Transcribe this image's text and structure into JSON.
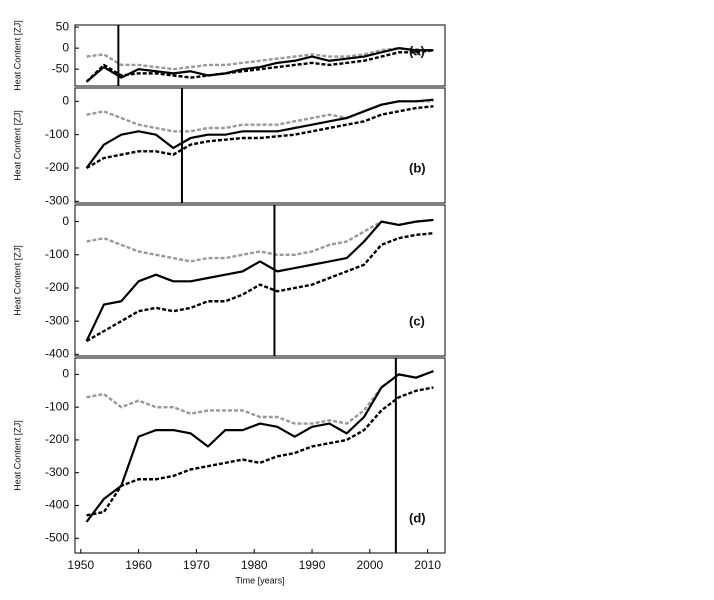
{
  "chart_data": [
    {
      "type": "line",
      "label": "(a)",
      "ylabel": "Heat Content [ZJ]",
      "xlim": [
        1949,
        2013
      ],
      "ylim": [
        -90,
        55
      ],
      "yticks": [
        50,
        0,
        -50
      ],
      "vline": 1956.5,
      "x": [
        1951,
        1954,
        1957,
        1960,
        1963,
        1966,
        1969,
        1972,
        1975,
        1978,
        1981,
        1984,
        1987,
        1990,
        1993,
        1996,
        1999,
        2002,
        2005,
        2008,
        2011
      ],
      "series": [
        {
          "color": "#999999",
          "dash": true,
          "values": [
            -20,
            -15,
            -40,
            -40,
            -45,
            -50,
            -45,
            -40,
            -40,
            -35,
            -30,
            -25,
            -20,
            -15,
            -20,
            -20,
            -15,
            -5,
            0,
            -5,
            -5
          ]
        },
        {
          "color": "#000000",
          "dash": true,
          "values": [
            -80,
            -40,
            -65,
            -60,
            -60,
            -65,
            -70,
            -65,
            -60,
            -55,
            -50,
            -45,
            -40,
            -35,
            -40,
            -35,
            -30,
            -20,
            -10,
            -10,
            -5
          ]
        },
        {
          "color": "#000000",
          "dash": false,
          "values": [
            -80,
            -45,
            -70,
            -50,
            -55,
            -60,
            -55,
            -65,
            -60,
            -50,
            -45,
            -35,
            -30,
            -20,
            -30,
            -25,
            -20,
            -10,
            0,
            -5,
            -5
          ]
        }
      ]
    },
    {
      "type": "line",
      "label": "(b)",
      "ylabel": "Heat Content [ZJ]",
      "xlim": [
        1949,
        2013
      ],
      "ylim": [
        -305,
        40
      ],
      "yticks": [
        0,
        -100,
        -200,
        -300
      ],
      "vline": 1967.5,
      "x": [
        1951,
        1954,
        1957,
        1960,
        1963,
        1966,
        1969,
        1972,
        1975,
        1978,
        1981,
        1984,
        1987,
        1990,
        1993,
        1996,
        1999,
        2002,
        2005,
        2008,
        2011
      ],
      "series": [
        {
          "color": "#999999",
          "dash": true,
          "values": [
            -40,
            -30,
            -50,
            -70,
            -80,
            -90,
            -90,
            -80,
            -80,
            -70,
            -70,
            -70,
            -60,
            -50,
            -40,
            -50,
            -30,
            -10,
            0,
            0,
            0
          ]
        },
        {
          "color": "#000000",
          "dash": true,
          "values": [
            -200,
            -170,
            -160,
            -150,
            -150,
            -160,
            -130,
            -120,
            -115,
            -110,
            -110,
            -105,
            -100,
            -90,
            -80,
            -70,
            -60,
            -40,
            -30,
            -20,
            -15
          ]
        },
        {
          "color": "#000000",
          "dash": false,
          "values": [
            -200,
            -130,
            -100,
            -90,
            -100,
            -140,
            -110,
            -100,
            -100,
            -90,
            -90,
            -90,
            -80,
            -70,
            -60,
            -50,
            -30,
            -10,
            0,
            0,
            5
          ]
        }
      ]
    },
    {
      "type": "line",
      "label": "(c)",
      "ylabel": "Heat Content [ZJ]",
      "xlim": [
        1949,
        2013
      ],
      "ylim": [
        -405,
        50
      ],
      "yticks": [
        0,
        -100,
        -200,
        -300,
        -400
      ],
      "vline": 1983.5,
      "x": [
        1951,
        1954,
        1957,
        1960,
        1963,
        1966,
        1969,
        1972,
        1975,
        1978,
        1981,
        1984,
        1987,
        1990,
        1993,
        1996,
        1999,
        2002,
        2005,
        2008,
        2011
      ],
      "series": [
        {
          "color": "#999999",
          "dash": true,
          "values": [
            -60,
            -50,
            -70,
            -90,
            -100,
            -110,
            -120,
            -110,
            -110,
            -100,
            -90,
            -100,
            -100,
            -90,
            -70,
            -60,
            -30,
            0,
            -10,
            0,
            5
          ]
        },
        {
          "color": "#000000",
          "dash": true,
          "values": [
            -360,
            -330,
            -300,
            -270,
            -260,
            -270,
            -260,
            -240,
            -240,
            -220,
            -190,
            -210,
            -200,
            -190,
            -170,
            -150,
            -130,
            -70,
            -50,
            -40,
            -35
          ]
        },
        {
          "color": "#000000",
          "dash": false,
          "values": [
            -360,
            -250,
            -240,
            -180,
            -160,
            -180,
            -180,
            -170,
            -160,
            -150,
            -120,
            -150,
            -140,
            -130,
            -120,
            -110,
            -60,
            0,
            -10,
            0,
            5
          ]
        }
      ]
    },
    {
      "type": "line",
      "label": "(d)",
      "ylabel": "Heat Content [ZJ]",
      "xlabel": "Time [years]",
      "xlim": [
        1949,
        2013
      ],
      "ylim": [
        -545,
        50
      ],
      "yticks": [
        0,
        -100,
        -200,
        -300,
        -400,
        -500
      ],
      "xticks": [
        1950,
        1960,
        1970,
        1980,
        1990,
        2000,
        2010
      ],
      "vline": 2004.5,
      "x": [
        1951,
        1954,
        1957,
        1960,
        1963,
        1966,
        1969,
        1972,
        1975,
        1978,
        1981,
        1984,
        1987,
        1990,
        1993,
        1996,
        1999,
        2002,
        2005,
        2008,
        2011
      ],
      "series": [
        {
          "color": "#999999",
          "dash": true,
          "values": [
            -70,
            -60,
            -100,
            -80,
            -100,
            -100,
            -120,
            -110,
            -110,
            -110,
            -130,
            -130,
            -150,
            -150,
            -140,
            -150,
            -110,
            -40,
            0,
            -10,
            10
          ]
        },
        {
          "color": "#000000",
          "dash": true,
          "values": [
            -430,
            -420,
            -340,
            -320,
            -320,
            -310,
            -290,
            -280,
            -270,
            -260,
            -270,
            -250,
            -240,
            -220,
            -210,
            -200,
            -170,
            -110,
            -70,
            -50,
            -40
          ]
        },
        {
          "color": "#000000",
          "dash": false,
          "values": [
            -450,
            -380,
            -340,
            -190,
            -170,
            -170,
            -180,
            -220,
            -170,
            -170,
            -150,
            -160,
            -190,
            -160,
            -150,
            -180,
            -130,
            -40,
            0,
            -10,
            10
          ]
        }
      ]
    }
  ]
}
